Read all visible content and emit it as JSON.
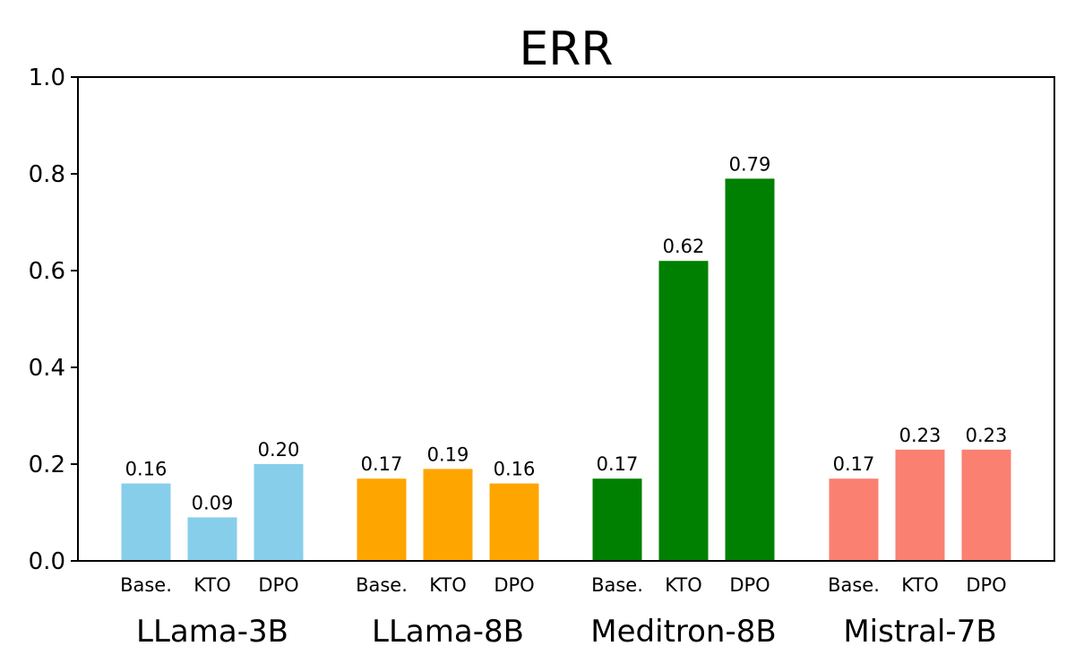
{
  "chart_data": {
    "type": "bar",
    "title": "ERR",
    "xlabel": "",
    "ylabel": "",
    "ylim": [
      0,
      1.0
    ],
    "yticks": [
      0.0,
      0.2,
      0.4,
      0.6,
      0.8,
      1.0
    ],
    "ytick_labels": [
      "0.0",
      "0.2",
      "0.4",
      "0.6",
      "0.8",
      "1.0"
    ],
    "grid": false,
    "legend": "none",
    "groups": [
      {
        "name": "LLama-3B",
        "color": "#87CEEB",
        "bars": [
          {
            "label": "Base.",
            "value": 0.16,
            "value_label": "0.16"
          },
          {
            "label": "KTO",
            "value": 0.09,
            "value_label": "0.09"
          },
          {
            "label": "DPO",
            "value": 0.2,
            "value_label": "0.20"
          }
        ]
      },
      {
        "name": "LLama-8B",
        "color": "#FFA500",
        "bars": [
          {
            "label": "Base.",
            "value": 0.17,
            "value_label": "0.17"
          },
          {
            "label": "KTO",
            "value": 0.19,
            "value_label": "0.19"
          },
          {
            "label": "DPO",
            "value": 0.16,
            "value_label": "0.16"
          }
        ]
      },
      {
        "name": "Meditron-8B",
        "color": "#008000",
        "bars": [
          {
            "label": "Base.",
            "value": 0.17,
            "value_label": "0.17"
          },
          {
            "label": "KTO",
            "value": 0.62,
            "value_label": "0.62"
          },
          {
            "label": "DPO",
            "value": 0.79,
            "value_label": "0.79"
          }
        ]
      },
      {
        "name": "Mistral-7B",
        "color": "#FA8072",
        "bars": [
          {
            "label": "Base.",
            "value": 0.17,
            "value_label": "0.17"
          },
          {
            "label": "KTO",
            "value": 0.23,
            "value_label": "0.23"
          },
          {
            "label": "DPO",
            "value": 0.23,
            "value_label": "0.23"
          }
        ]
      }
    ]
  }
}
